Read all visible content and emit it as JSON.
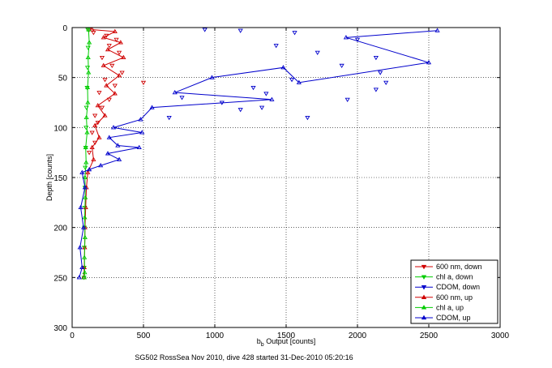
{
  "chart_data": {
    "type": "scatter",
    "title": "",
    "xlabel_main": "b",
    "xlabel_sub": "b",
    "xlabel_rest": " Output [counts]",
    "ylabel": "Depth [counts]",
    "xlim": [
      0,
      3000
    ],
    "ylim": [
      0,
      300
    ],
    "y_reversed": true,
    "grid": true,
    "xticks": [
      0,
      500,
      1000,
      1500,
      2000,
      2500,
      3000
    ],
    "yticks": [
      0,
      50,
      100,
      150,
      200,
      250,
      300
    ],
    "caption": "SG502 RossSea Nov 2010, dive 428 started 31-Dec-2010 05:20:16",
    "legend_position": "bottom-right",
    "series": [
      {
        "name": "600 nm, down",
        "color": "#d00000",
        "marker": "triangle-down",
        "line": false,
        "points": [
          [
            120,
            2
          ],
          [
            150,
            5
          ],
          [
            240,
            8
          ],
          [
            310,
            12
          ],
          [
            260,
            18
          ],
          [
            330,
            25
          ],
          [
            210,
            30
          ],
          [
            280,
            38
          ],
          [
            350,
            45
          ],
          [
            230,
            52
          ],
          [
            300,
            58
          ],
          [
            500,
            55
          ],
          [
            190,
            65
          ],
          [
            260,
            72
          ],
          [
            210,
            80
          ],
          [
            160,
            88
          ],
          [
            180,
            95
          ],
          [
            140,
            105
          ],
          [
            160,
            115
          ],
          [
            120,
            125
          ]
        ]
      },
      {
        "name": "chl a, down",
        "color": "#00cc00",
        "marker": "triangle-down",
        "line": false,
        "points": [
          [
            110,
            2
          ],
          [
            112,
            20
          ],
          [
            108,
            40
          ],
          [
            105,
            60
          ],
          [
            100,
            80
          ],
          [
            98,
            100
          ],
          [
            95,
            120
          ],
          [
            92,
            140
          ],
          [
            90,
            160
          ],
          [
            88,
            180
          ],
          [
            86,
            200
          ],
          [
            85,
            220
          ],
          [
            84,
            240
          ],
          [
            83,
            250
          ]
        ]
      },
      {
        "name": "CDOM, down",
        "color": "#0000cc",
        "marker": "triangle-down",
        "line": false,
        "points": [
          [
            930,
            2
          ],
          [
            1180,
            3
          ],
          [
            1560,
            5
          ],
          [
            2000,
            12
          ],
          [
            1430,
            18
          ],
          [
            1720,
            25
          ],
          [
            2130,
            30
          ],
          [
            1890,
            38
          ],
          [
            2160,
            45
          ],
          [
            1540,
            52
          ],
          [
            2200,
            55
          ],
          [
            1270,
            60
          ],
          [
            1360,
            66
          ],
          [
            1930,
            72
          ],
          [
            770,
            70
          ],
          [
            1050,
            75
          ],
          [
            1180,
            82
          ],
          [
            1330,
            80
          ],
          [
            1650,
            90
          ],
          [
            2130,
            62
          ],
          [
            680,
            90
          ]
        ]
      },
      {
        "name": "600 nm, up",
        "color": "#d00000",
        "marker": "triangle-up",
        "line": true,
        "points": [
          [
            140,
            2
          ],
          [
            300,
            4
          ],
          [
            220,
            10
          ],
          [
            340,
            15
          ],
          [
            250,
            22
          ],
          [
            360,
            30
          ],
          [
            220,
            38
          ],
          [
            330,
            48
          ],
          [
            240,
            58
          ],
          [
            300,
            66
          ],
          [
            180,
            78
          ],
          [
            230,
            88
          ],
          [
            160,
            98
          ],
          [
            190,
            110
          ],
          [
            140,
            120
          ],
          [
            150,
            132
          ],
          [
            110,
            145
          ],
          [
            100,
            160
          ],
          [
            95,
            180
          ],
          [
            90,
            200
          ],
          [
            88,
            220
          ],
          [
            85,
            240
          ],
          [
            82,
            250
          ]
        ]
      },
      {
        "name": "chl a, up",
        "color": "#00cc00",
        "marker": "triangle-up",
        "line": true,
        "points": [
          [
            115,
            2
          ],
          [
            120,
            15
          ],
          [
            112,
            30
          ],
          [
            115,
            45
          ],
          [
            108,
            60
          ],
          [
            110,
            75
          ],
          [
            100,
            90
          ],
          [
            105,
            105
          ],
          [
            95,
            120
          ],
          [
            98,
            135
          ],
          [
            90,
            150
          ],
          [
            92,
            170
          ],
          [
            88,
            190
          ],
          [
            90,
            210
          ],
          [
            86,
            230
          ],
          [
            88,
            245
          ],
          [
            85,
            250
          ]
        ]
      },
      {
        "name": "CDOM, up",
        "color": "#0000cc",
        "marker": "triangle-up",
        "line": true,
        "points": [
          [
            2560,
            3
          ],
          [
            1920,
            10
          ],
          [
            2500,
            35
          ],
          [
            1590,
            55
          ],
          [
            1480,
            40
          ],
          [
            980,
            50
          ],
          [
            720,
            65
          ],
          [
            1400,
            72
          ],
          [
            560,
            80
          ],
          [
            480,
            92
          ],
          [
            290,
            100
          ],
          [
            490,
            105
          ],
          [
            260,
            110
          ],
          [
            320,
            118
          ],
          [
            470,
            120
          ],
          [
            250,
            126
          ],
          [
            330,
            132
          ],
          [
            200,
            138
          ],
          [
            120,
            142
          ],
          [
            70,
            145
          ],
          [
            90,
            160
          ],
          [
            60,
            180
          ],
          [
            80,
            200
          ],
          [
            55,
            220
          ],
          [
            70,
            240
          ],
          [
            50,
            250
          ]
        ]
      }
    ]
  }
}
